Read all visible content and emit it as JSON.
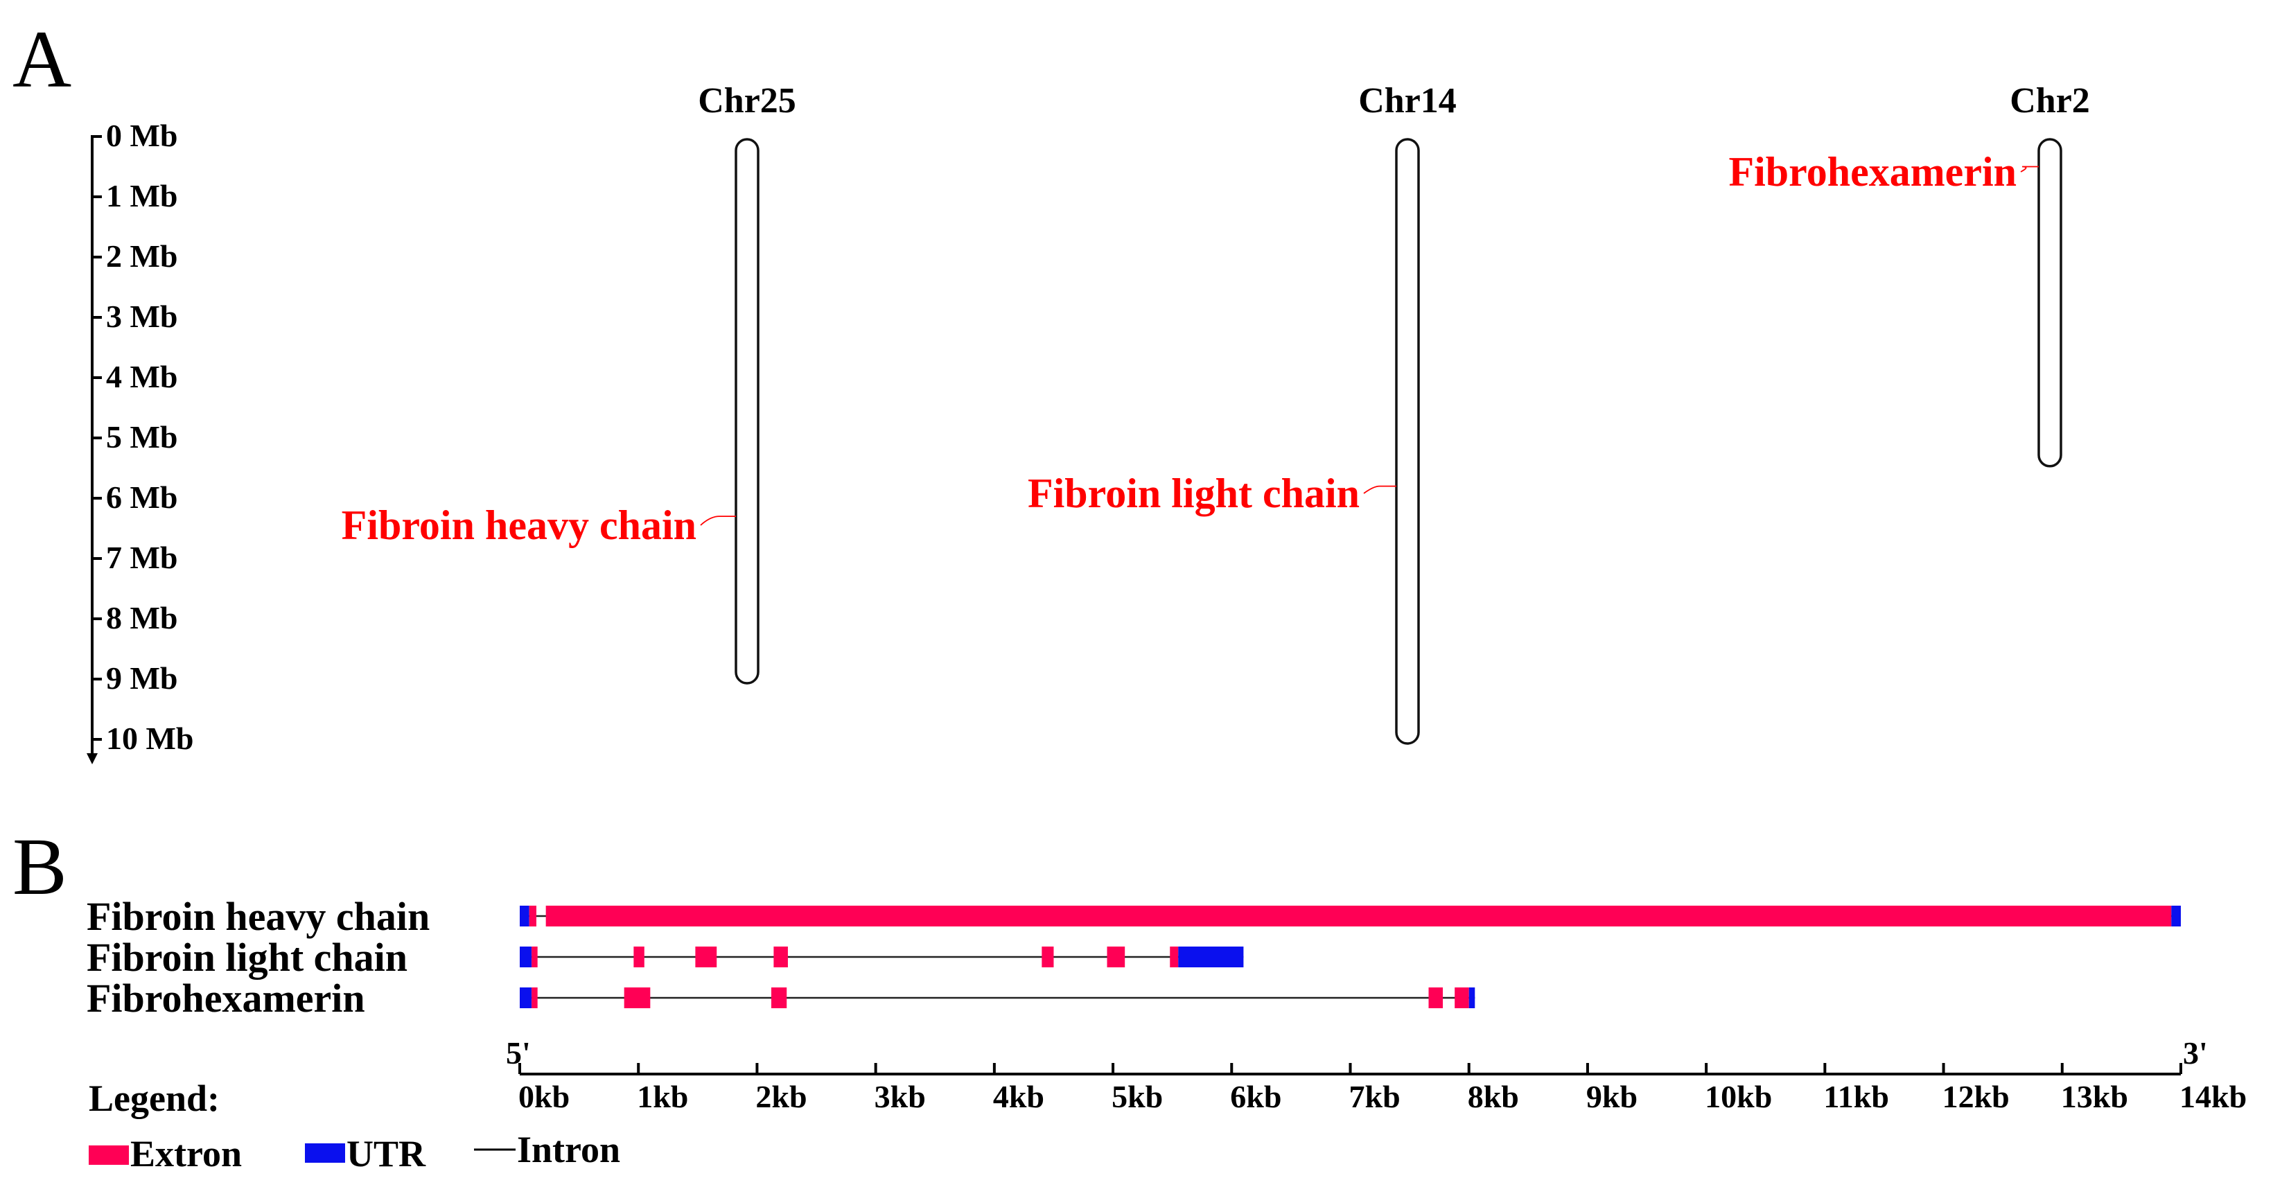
{
  "panel_a": {
    "label": "A",
    "scale": {
      "ticks": [
        "0 Mb",
        "1 Mb",
        "2 Mb",
        "3 Mb",
        "4 Mb",
        "5 Mb",
        "6 Mb",
        "7 Mb",
        "8 Mb",
        "9 Mb",
        "10 Mb"
      ]
    },
    "chromosomes": [
      {
        "name": "Chr25",
        "length_mb": 9.0,
        "genes": [
          {
            "name": "Fibroin heavy chain",
            "position_mb": 6.3
          }
        ]
      },
      {
        "name": "Chr14",
        "length_mb": 10.0,
        "genes": [
          {
            "name": "Fibroin light chain",
            "position_mb": 5.8
          }
        ]
      },
      {
        "name": "Chr2",
        "length_mb": 5.4,
        "genes": [
          {
            "name": "Fibrohexamerin",
            "position_mb": 0.5
          }
        ]
      }
    ]
  },
  "panel_b": {
    "label": "B",
    "genes": [
      {
        "name": "Fibroin heavy chain",
        "span_kb": [
          0,
          14.0
        ],
        "features": [
          {
            "type": "UTR",
            "start_kb": 0.0,
            "end_kb": 0.08
          },
          {
            "type": "Extron",
            "start_kb": 0.08,
            "end_kb": 0.14
          },
          {
            "type": "Extron",
            "start_kb": 0.22,
            "end_kb": 13.92
          },
          {
            "type": "UTR",
            "start_kb": 13.92,
            "end_kb": 14.0
          }
        ]
      },
      {
        "name": "Fibroin light chain",
        "span_kb": [
          0,
          6.1
        ],
        "features": [
          {
            "type": "UTR",
            "start_kb": 0.0,
            "end_kb": 0.1
          },
          {
            "type": "Extron",
            "start_kb": 0.1,
            "end_kb": 0.15
          },
          {
            "type": "Extron",
            "start_kb": 0.96,
            "end_kb": 1.05
          },
          {
            "type": "Extron",
            "start_kb": 1.48,
            "end_kb": 1.66
          },
          {
            "type": "Extron",
            "start_kb": 2.14,
            "end_kb": 2.26
          },
          {
            "type": "Extron",
            "start_kb": 4.4,
            "end_kb": 4.5
          },
          {
            "type": "Extron",
            "start_kb": 4.95,
            "end_kb": 5.1
          },
          {
            "type": "Extron",
            "start_kb": 5.48,
            "end_kb": 5.55
          },
          {
            "type": "UTR",
            "start_kb": 5.55,
            "end_kb": 6.1
          }
        ]
      },
      {
        "name": "Fibrohexamerin",
        "span_kb": [
          0,
          8.05
        ],
        "features": [
          {
            "type": "UTR",
            "start_kb": 0.0,
            "end_kb": 0.1
          },
          {
            "type": "Extron",
            "start_kb": 0.1,
            "end_kb": 0.15
          },
          {
            "type": "Extron",
            "start_kb": 0.88,
            "end_kb": 1.1
          },
          {
            "type": "Extron",
            "start_kb": 2.12,
            "end_kb": 2.25
          },
          {
            "type": "Extron",
            "start_kb": 7.66,
            "end_kb": 7.78
          },
          {
            "type": "Extron",
            "start_kb": 7.88,
            "end_kb": 8.0
          },
          {
            "type": "UTR",
            "start_kb": 8.0,
            "end_kb": 8.05
          }
        ]
      }
    ],
    "axis": {
      "five_prime": "5'",
      "three_prime": "3'",
      "ticks": [
        "0kb",
        "1kb",
        "2kb",
        "3kb",
        "4kb",
        "5kb",
        "6kb",
        "7kb",
        "8kb",
        "9kb",
        "10kb",
        "11kb",
        "12kb",
        "13kb",
        "14kb"
      ],
      "range_kb": [
        0,
        14
      ]
    },
    "legend": {
      "title": "Legend:",
      "exon": "Extron",
      "utr": "UTR",
      "intron": "Intron"
    }
  },
  "colors": {
    "exon": "#ff0055",
    "utr": "#0a10ee",
    "gene_label": "#ff0000",
    "text": "#000000"
  }
}
